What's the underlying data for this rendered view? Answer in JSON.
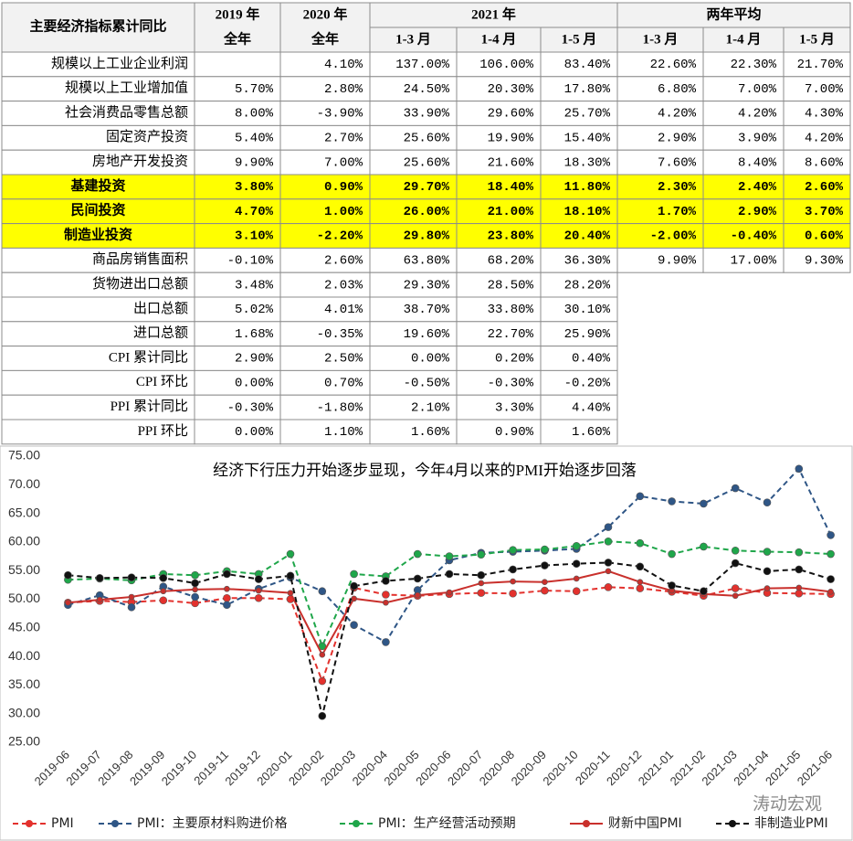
{
  "table": {
    "corner": "主要经济指标累计同比",
    "group_headers": [
      "2019 年",
      "2020 年",
      "2021 年",
      "两年平均"
    ],
    "sub_headers": [
      "全年",
      "全年",
      "1-3 月",
      "1-4 月",
      "1-5 月",
      "1-3 月",
      "1-4 月",
      "1-5 月"
    ],
    "rows": [
      {
        "label": "规模以上工业企业利润",
        "cells": [
          null,
          "4.10%",
          "137.00%",
          "106.00%",
          "83.40%",
          "22.60%",
          "22.30%",
          "21.70%"
        ]
      },
      {
        "label": "规模以上工业增加值",
        "cells": [
          "5.70%",
          "2.80%",
          "24.50%",
          "20.30%",
          "17.80%",
          "6.80%",
          "7.00%",
          "7.00%"
        ]
      },
      {
        "label": "社会消费品零售总额",
        "cells": [
          "8.00%",
          "-3.90%",
          "33.90%",
          "29.60%",
          "25.70%",
          "4.20%",
          "4.20%",
          "4.30%"
        ]
      },
      {
        "label": "固定资产投资",
        "cells": [
          "5.40%",
          "2.70%",
          "25.60%",
          "19.90%",
          "15.40%",
          "2.90%",
          "3.90%",
          "4.20%"
        ]
      },
      {
        "label": "房地产开发投资",
        "cells": [
          "9.90%",
          "7.00%",
          "25.60%",
          "21.60%",
          "18.30%",
          "7.60%",
          "8.40%",
          "8.60%"
        ]
      },
      {
        "label": "基建投资",
        "highlight": true,
        "cells": [
          "3.80%",
          "0.90%",
          "29.70%",
          "18.40%",
          "11.80%",
          "2.30%",
          "2.40%",
          "2.60%"
        ]
      },
      {
        "label": "民间投资",
        "highlight": true,
        "cells": [
          "4.70%",
          "1.00%",
          "26.00%",
          "21.00%",
          "18.10%",
          "1.70%",
          "2.90%",
          "3.70%"
        ]
      },
      {
        "label": "制造业投资",
        "highlight": true,
        "cells": [
          "3.10%",
          "-2.20%",
          "29.80%",
          "23.80%",
          "20.40%",
          "-2.00%",
          "-0.40%",
          "0.60%"
        ]
      },
      {
        "label": "商品房销售面积",
        "cells": [
          "-0.10%",
          "2.60%",
          "63.80%",
          "68.20%",
          "36.30%",
          "9.90%",
          "17.00%",
          "9.30%"
        ]
      },
      {
        "label": "货物进出口总额",
        "cells": [
          "3.48%",
          "2.03%",
          "29.30%",
          "28.50%",
          "28.20%"
        ]
      },
      {
        "label": "出口总额",
        "cells": [
          "5.02%",
          "4.01%",
          "38.70%",
          "33.80%",
          "30.10%"
        ]
      },
      {
        "label": "进口总额",
        "cells": [
          "1.68%",
          "-0.35%",
          "19.60%",
          "22.70%",
          "25.90%"
        ]
      },
      {
        "label": "CPI 累计同比",
        "cells": [
          "2.90%",
          "2.50%",
          "0.00%",
          "0.20%",
          "0.40%"
        ]
      },
      {
        "label": "CPI 环比",
        "cells": [
          "0.00%",
          "0.70%",
          "-0.50%",
          "-0.30%",
          "-0.20%"
        ]
      },
      {
        "label": "PPI 累计同比",
        "cells": [
          "-0.30%",
          "-1.80%",
          "2.10%",
          "3.30%",
          "4.40%"
        ]
      },
      {
        "label": "PPI 环比",
        "cells": [
          "0.00%",
          "1.10%",
          "1.60%",
          "0.90%",
          "1.60%"
        ]
      }
    ]
  },
  "chart_data": {
    "type": "line",
    "title": "经济下行压力开始逐步显现，今年4月以来的PMI开始逐步回落",
    "categories": [
      "2019-06",
      "2019-07",
      "2019-08",
      "2019-09",
      "2019-10",
      "2019-11",
      "2019-12",
      "2020-01",
      "2020-02",
      "2020-03",
      "2020-04",
      "2020-05",
      "2020-06",
      "2020-07",
      "2020-08",
      "2020-09",
      "2020-10",
      "2020-11",
      "2020-12",
      "2021-01",
      "2021-02",
      "2021-03",
      "2021-04",
      "2021-05",
      "2021-06"
    ],
    "ylim": [
      25,
      75
    ],
    "yticks": [
      {
        "value": 25,
        "label": "25.00"
      },
      {
        "value": 30,
        "label": "30.00"
      },
      {
        "value": 35,
        "label": "35.00"
      },
      {
        "value": 40,
        "label": "40.00"
      },
      {
        "value": 45,
        "label": "45.00"
      },
      {
        "value": 50,
        "label": "50.00"
      },
      {
        "value": 55,
        "label": "55.00"
      },
      {
        "value": 60,
        "label": "60.00"
      },
      {
        "value": 65,
        "label": "65.00"
      },
      {
        "value": 70,
        "label": "70.00"
      },
      {
        "value": 75,
        "label": "75.00"
      }
    ],
    "grid": false,
    "series": [
      {
        "name": "PMI",
        "color": "#e3312d",
        "dashed": true,
        "values": [
          49.4,
          49.7,
          49.5,
          49.8,
          49.3,
          50.2,
          50.2,
          50.0,
          35.7,
          52.0,
          50.8,
          50.6,
          50.9,
          51.1,
          51.0,
          51.5,
          51.4,
          52.1,
          51.9,
          51.3,
          50.6,
          51.9,
          51.1,
          51.0,
          50.9
        ]
      },
      {
        "name": "PMI：主要原材料购进价格",
        "color": "#2f5686",
        "dashed": true,
        "values": [
          49.0,
          50.7,
          48.6,
          52.2,
          50.4,
          49.0,
          51.8,
          53.8,
          51.4,
          45.5,
          42.5,
          51.6,
          56.8,
          58.1,
          58.3,
          58.5,
          58.8,
          62.6,
          68.0,
          67.1,
          66.7,
          69.4,
          66.9,
          72.8,
          61.2
        ]
      },
      {
        "name": "PMI：生产经营活动预期",
        "color": "#1fa64a",
        "dashed": true,
        "values": [
          53.4,
          53.6,
          53.3,
          54.4,
          54.2,
          54.9,
          54.4,
          57.9,
          41.8,
          54.4,
          54.0,
          57.9,
          57.5,
          57.8,
          58.6,
          58.7,
          59.3,
          60.1,
          59.8,
          57.9,
          59.2,
          58.5,
          58.3,
          58.2,
          57.9
        ]
      },
      {
        "name": "财新中国PMI",
        "color": "#c9302c",
        "dashed": false,
        "values": [
          49.4,
          49.9,
          50.4,
          51.4,
          51.7,
          51.8,
          51.5,
          51.1,
          40.3,
          50.1,
          49.4,
          50.7,
          51.2,
          52.8,
          53.1,
          53.0,
          53.6,
          54.9,
          53.0,
          51.5,
          50.9,
          50.6,
          51.9,
          52.0,
          51.3
        ]
      },
      {
        "name": "非制造业PMI",
        "color": "#111111",
        "dashed": true,
        "values": [
          54.2,
          53.7,
          53.8,
          53.7,
          52.8,
          54.4,
          53.5,
          54.1,
          29.6,
          52.3,
          53.2,
          53.6,
          54.4,
          54.2,
          55.2,
          55.9,
          56.2,
          56.4,
          55.7,
          52.4,
          51.4,
          56.3,
          54.9,
          55.2,
          53.5
        ]
      }
    ]
  },
  "watermark": "涛动宏观"
}
